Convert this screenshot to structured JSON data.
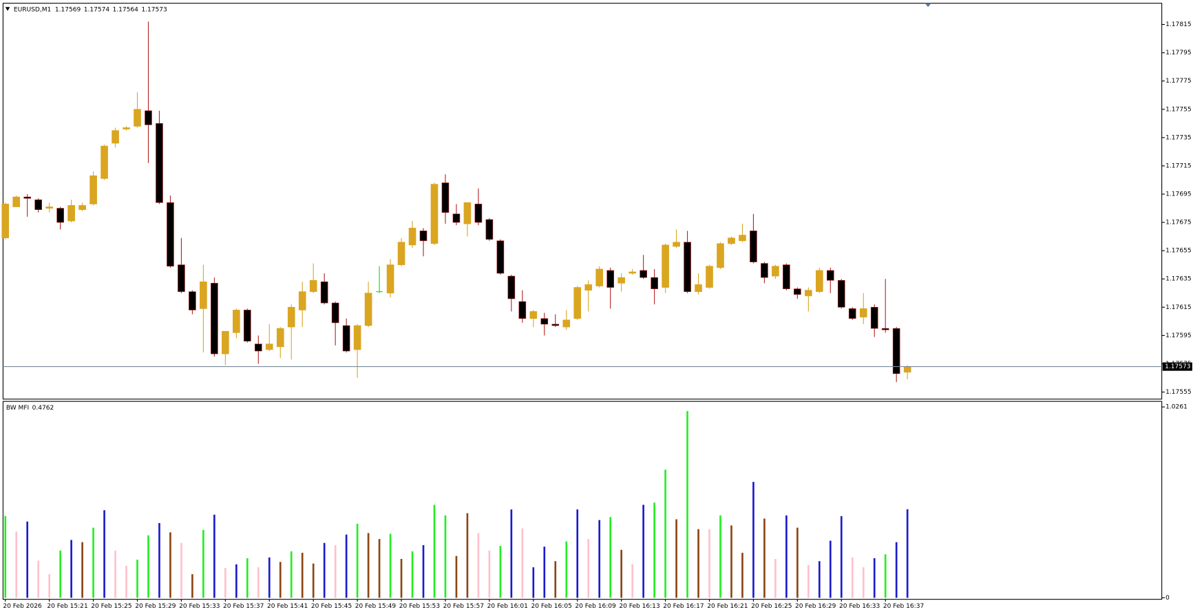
{
  "chart_data": [
    {
      "type": "candlestick",
      "symbol": "EURUSD,M1",
      "categories": [
        "20 Feb 2026",
        null,
        null,
        null,
        "20 Feb 15:21",
        null,
        null,
        null,
        "20 Feb 15:25",
        null,
        null,
        null,
        "20 Feb 15:29",
        null,
        null,
        null,
        "20 Feb 15:33",
        null,
        null,
        null,
        "20 Feb 15:37",
        null,
        null,
        null,
        "20 Feb 15:41",
        null,
        null,
        null,
        "20 Feb 15:45",
        null,
        null,
        null,
        "20 Feb 15:49",
        null,
        null,
        null,
        "20 Feb 15:53",
        null,
        null,
        null,
        "20 Feb 15:57",
        null,
        null,
        null,
        "20 Feb 16:01",
        null,
        null,
        null,
        "20 Feb 16:05",
        null,
        null,
        null,
        "20 Feb 16:09",
        null,
        null,
        null,
        "20 Feb 16:13",
        null,
        null,
        null,
        "20 Feb 16:17",
        null,
        null,
        null,
        "20 Feb 16:21",
        null,
        null,
        null,
        "20 Feb 16:25",
        null,
        null,
        null,
        "20 Feb 16:29",
        null,
        null,
        null,
        "20 Feb 16:33",
        null,
        null,
        null,
        "20 Feb 16:37",
        null,
        null
      ],
      "open": [
        1.17664,
        1.17686,
        1.17693,
        1.17691,
        1.17685,
        1.17685,
        1.17676,
        1.17684,
        1.17688,
        1.17706,
        1.17731,
        1.17741,
        1.17743,
        1.17754,
        1.17745,
        1.17689,
        1.17645,
        1.17626,
        1.17614,
        1.17632,
        1.17582,
        1.17597,
        1.17613,
        1.17589,
        1.17585,
        1.17587,
        1.17601,
        1.17613,
        1.17626,
        1.17633,
        1.17618,
        1.17602,
        1.17585,
        1.17602,
        1.17626,
        1.17625,
        1.17645,
        1.17659,
        1.17669,
        1.1766,
        1.17703,
        1.17681,
        1.17674,
        1.17688,
        1.17677,
        1.17662,
        1.17637,
        1.17619,
        1.17607,
        1.17607,
        1.17603,
        1.17601,
        1.17607,
        1.17627,
        1.1763,
        1.17641,
        1.17632,
        1.17639,
        1.17641,
        1.17636,
        1.17629,
        1.17658,
        1.17661,
        1.17626,
        1.17629,
        1.17643,
        1.1766,
        1.17662,
        1.17669,
        1.17646,
        1.17637,
        1.17645,
        1.17628,
        1.17623,
        1.17626,
        1.17641,
        1.17634,
        1.17614,
        1.17608,
        1.17615,
        1.176,
        1.176,
        1.17569
      ],
      "high": [
        1.17689,
        1.17694,
        1.17695,
        1.17692,
        1.17689,
        1.17686,
        1.17691,
        1.17689,
        1.17711,
        1.1773,
        1.17742,
        1.17743,
        1.17767,
        1.17817,
        1.17754,
        1.17694,
        1.17664,
        1.17627,
        1.17645,
        1.17636,
        1.17598,
        1.17614,
        1.17614,
        1.17595,
        1.17603,
        1.17601,
        1.17617,
        1.17633,
        1.17646,
        1.17639,
        1.17619,
        1.17607,
        1.17603,
        1.17633,
        1.17644,
        1.17649,
        1.17664,
        1.17676,
        1.17671,
        1.17703,
        1.17709,
        1.17688,
        1.17689,
        1.17699,
        1.17678,
        1.17663,
        1.17638,
        1.17627,
        1.17613,
        1.17611,
        1.1761,
        1.17613,
        1.1763,
        1.17634,
        1.17644,
        1.17643,
        1.17639,
        1.17642,
        1.17652,
        1.17642,
        1.1766,
        1.1767,
        1.17669,
        1.17639,
        1.17645,
        1.17661,
        1.17665,
        1.17674,
        1.17681,
        1.17647,
        1.17645,
        1.17646,
        1.17629,
        1.17629,
        1.17643,
        1.17643,
        1.17635,
        1.17615,
        1.17625,
        1.17617,
        1.17635,
        1.17601,
        1.17574
      ],
      "low": [
        1.17663,
        1.17686,
        1.17679,
        1.17682,
        1.17682,
        1.1767,
        1.17675,
        1.17683,
        1.17687,
        1.17705,
        1.17728,
        1.1774,
        1.17742,
        1.17717,
        1.17688,
        1.17643,
        1.17625,
        1.1761,
        1.17583,
        1.1758,
        1.17574,
        1.17593,
        1.1759,
        1.17575,
        1.17584,
        1.17579,
        1.17578,
        1.17601,
        1.17625,
        1.17617,
        1.17588,
        1.17583,
        1.17565,
        1.17601,
        1.17625,
        1.17622,
        1.17644,
        1.17657,
        1.17651,
        1.17659,
        1.17674,
        1.17673,
        1.17665,
        1.17673,
        1.17662,
        1.17638,
        1.17612,
        1.17604,
        1.17601,
        1.17595,
        1.17601,
        1.17599,
        1.17606,
        1.17612,
        1.17629,
        1.17614,
        1.17626,
        1.17638,
        1.17635,
        1.17617,
        1.17625,
        1.17657,
        1.17625,
        1.17624,
        1.17628,
        1.17642,
        1.17659,
        1.17661,
        1.17646,
        1.17632,
        1.17635,
        1.17627,
        1.17621,
        1.17612,
        1.17625,
        1.17625,
        1.17614,
        1.17606,
        1.17603,
        1.17594,
        1.17597,
        1.17562,
        1.17564
      ],
      "close": [
        1.17688,
        1.17693,
        1.17692,
        1.17684,
        1.17686,
        1.17675,
        1.17687,
        1.17687,
        1.17708,
        1.17729,
        1.1774,
        1.17742,
        1.17755,
        1.17744,
        1.17689,
        1.17644,
        1.17626,
        1.17613,
        1.17633,
        1.17582,
        1.17598,
        1.17613,
        1.17591,
        1.17584,
        1.17589,
        1.176,
        1.17615,
        1.17626,
        1.17634,
        1.17618,
        1.17604,
        1.17584,
        1.17602,
        1.17625,
        1.17626,
        1.17645,
        1.17661,
        1.17671,
        1.17662,
        1.17702,
        1.17682,
        1.17675,
        1.17689,
        1.17675,
        1.17663,
        1.17639,
        1.17621,
        1.17607,
        1.17612,
        1.17603,
        1.17602,
        1.17606,
        1.17629,
        1.17631,
        1.17642,
        1.17629,
        1.17636,
        1.1764,
        1.17636,
        1.17628,
        1.17659,
        1.17661,
        1.17626,
        1.17631,
        1.17644,
        1.1766,
        1.17664,
        1.17666,
        1.17647,
        1.17636,
        1.17644,
        1.17628,
        1.17624,
        1.17627,
        1.17641,
        1.17634,
        1.17615,
        1.17607,
        1.17614,
        1.176,
        1.17599,
        1.17568,
        1.17573
      ],
      "up_color": "#daa520",
      "down_color": "#000000",
      "down_wick_color": "#b22222",
      "doji_color": "#00e600",
      "bid_line_color": "#778899",
      "ylim": [
        1.1755,
        1.1783
      ],
      "yticks": [
        1.17815,
        1.17795,
        1.17775,
        1.17755,
        1.17735,
        1.17715,
        1.17695,
        1.17675,
        1.17655,
        1.17635,
        1.17615,
        1.17595,
        1.17575,
        1.17555
      ]
    },
    {
      "type": "bar",
      "title": "BW MFI",
      "values": [
        0.44,
        0.356,
        0.41,
        0.2,
        0.127,
        0.254,
        0.311,
        0.299,
        0.377,
        0.471,
        0.254,
        0.172,
        0.205,
        0.336,
        0.402,
        0.352,
        0.295,
        0.127,
        0.365,
        0.447,
        0.16,
        0.18,
        0.213,
        0.164,
        0.217,
        0.193,
        0.25,
        0.242,
        0.184,
        0.295,
        0.283,
        0.34,
        0.398,
        0.348,
        0.316,
        0.344,
        0.209,
        0.25,
        0.283,
        0.5,
        0.443,
        0.225,
        0.455,
        0.348,
        0.254,
        0.279,
        0.475,
        0.373,
        0.164,
        0.275,
        0.197,
        0.303,
        0.475,
        0.316,
        0.418,
        0.434,
        0.258,
        0.18,
        0.5,
        0.512,
        0.689,
        0.422,
        1.004,
        0.369,
        0.369,
        0.443,
        0.389,
        0.242,
        0.623,
        0.426,
        0.209,
        0.443,
        0.377,
        0.176,
        0.197,
        0.307,
        0.439,
        0.217,
        0.164,
        0.213,
        0.234,
        0.299,
        0.4762
      ],
      "colors": [
        "#22ee22",
        "#ffc0cb",
        "#1a1acd",
        "#ffc0cb",
        "#ffc0cb",
        "#22ee22",
        "#1a1acd",
        "#8b4513",
        "#22ee22",
        "#1a1acd",
        "#ffc0cb",
        "#ffc0cb",
        "#22ee22",
        "#22ee22",
        "#1a1acd",
        "#8b4513",
        "#ffc0cb",
        "#8b4513",
        "#22ee22",
        "#1a1acd",
        "#ffc0cb",
        "#1a1acd",
        "#22ee22",
        "#ffc0cb",
        "#1a1acd",
        "#8b4513",
        "#22ee22",
        "#8b4513",
        "#8b4513",
        "#1a1acd",
        "#ffc0cb",
        "#1a1acd",
        "#22ee22",
        "#8b4513",
        "#8b4513",
        "#22ee22",
        "#8b4513",
        "#22ee22",
        "#1a1acd",
        "#22ee22",
        "#22ee22",
        "#8b4513",
        "#8b4513",
        "#ffc0cb",
        "#ffc0cb",
        "#22ee22",
        "#1a1acd",
        "#ffc0cb",
        "#1a1acd",
        "#1a1acd",
        "#8b4513",
        "#22ee22",
        "#1a1acd",
        "#ffc0cb",
        "#1a1acd",
        "#22ee22",
        "#8b4513",
        "#ffc0cb",
        "#1a1acd",
        "#22ee22",
        "#22ee22",
        "#8b4513",
        "#22ee22",
        "#8b4513",
        "#ffc0cb",
        "#22ee22",
        "#8b4513",
        "#8b4513",
        "#1a1acd",
        "#8b4513",
        "#ffc0cb",
        "#1a1acd",
        "#8b4513",
        "#ffc0cb",
        "#1a1acd",
        "#1a1acd",
        "#1a1acd",
        "#ffc0cb",
        "#ffc0cb",
        "#1a1acd",
        "#22ee22",
        "#1a1acd",
        "#1a1acd"
      ],
      "ylim": [
        0,
        1.056
      ],
      "yticks": [
        0,
        1.0261
      ]
    }
  ]
}
